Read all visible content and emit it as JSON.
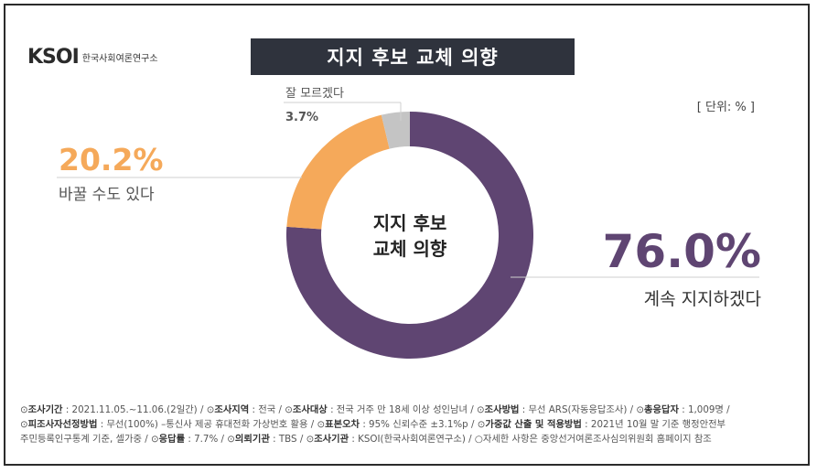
{
  "header": {
    "logo_text": "KSOI",
    "logo_sub": "한국사회여론연구소",
    "title": "지지 후보 교체 의향",
    "unit": "[ 단위: % ]"
  },
  "colors": {
    "keep": "#5f4572",
    "change": "#f5a95a",
    "unknown": "#c4c4c4",
    "title_bg": "#2f333d"
  },
  "chart_data": {
    "type": "pie",
    "title": "지지 후보 교체 의향",
    "center_label": [
      "지지 후보",
      "교체 의향"
    ],
    "unit": "%",
    "slices": [
      {
        "label": "계속 지지하겠다",
        "value": 76.0,
        "value_label": "76.0%",
        "color": "#5f4572"
      },
      {
        "label": "바꿀 수도 있다",
        "value": 20.2,
        "value_label": "20.2%",
        "color": "#f5a95a"
      },
      {
        "label": "잘 모르겠다",
        "value": 3.7,
        "value_label": "3.7%",
        "color": "#c4c4c4"
      }
    ]
  },
  "footer": {
    "rows": [
      [
        {
          "key": "조사기간",
          "val": "2021.11.05.~11.06.(2일간)"
        },
        {
          "key": "조사지역",
          "val": "전국"
        },
        {
          "key": "조사대상",
          "val": "전국 거주 만 18세 이상 성인남녀"
        },
        {
          "key": "조사방법",
          "val": "무선 ARS(자동응답조사)"
        },
        {
          "key": "총응답자",
          "val": "1,009명"
        }
      ],
      [
        {
          "key": "피조사자선정방법",
          "val": "무선(100%) –통신사 제공 휴대전화 가상번호 활용"
        },
        {
          "key": "표본오차",
          "val": "95% 신뢰수준 ±3.1%p"
        },
        {
          "key": "가중값 산출 및 적용방법",
          "val": "2021년 10월 말 기준 행정안전부"
        }
      ],
      [
        {
          "key": "",
          "val": "주민등록인구통계 기준, 셀가중"
        },
        {
          "key": "응답률",
          "val": "7.7%"
        },
        {
          "key": "의뢰기관",
          "val": "TBS"
        },
        {
          "key": "조사기관",
          "val": "KSOI(한국사회여론연구소)"
        },
        {
          "key": "",
          "val": "○자세한 사항은 중앙선거여론조사심의위원회 홈페이지 참조"
        }
      ]
    ]
  }
}
